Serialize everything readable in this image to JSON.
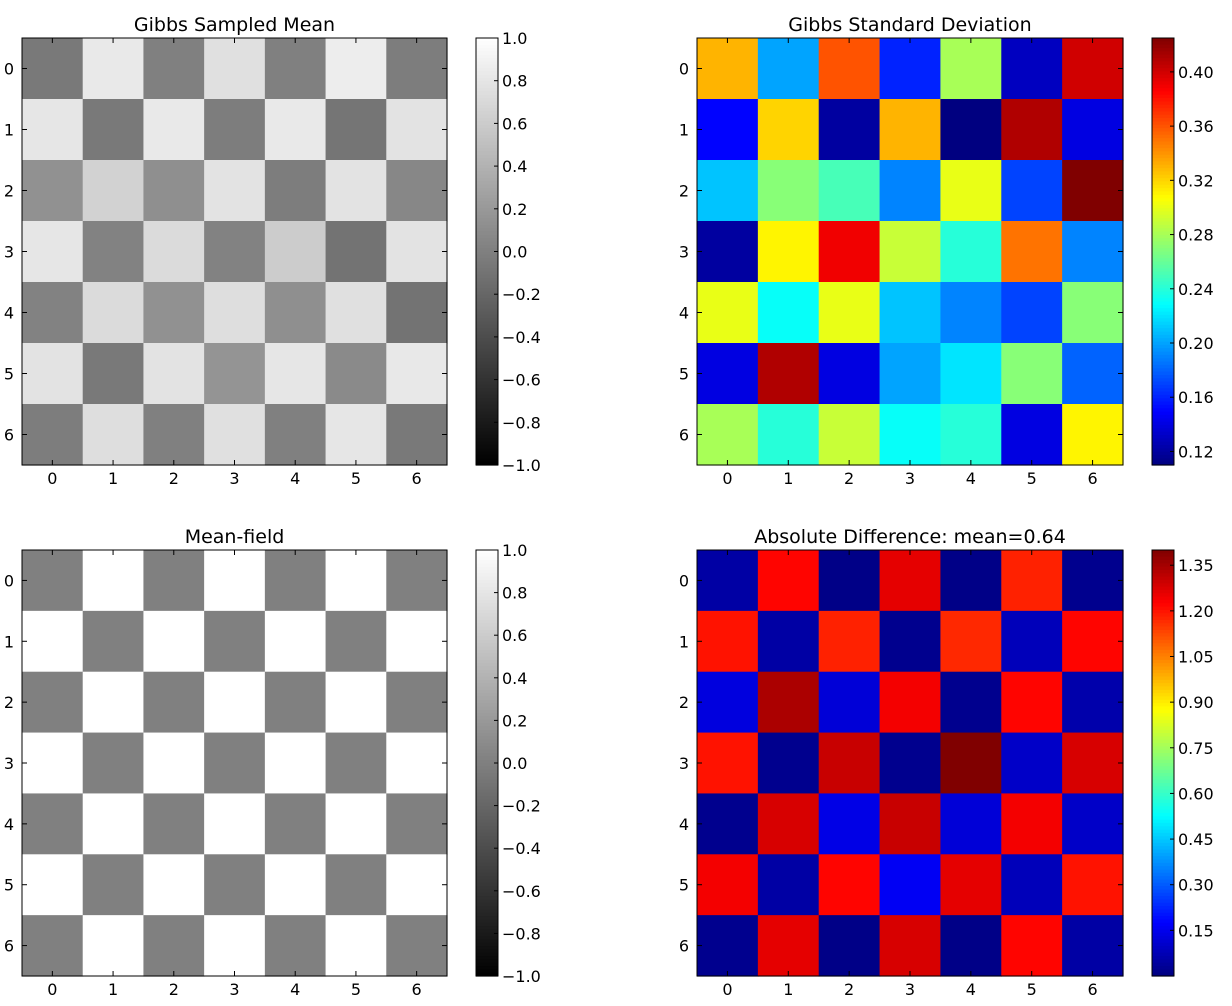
{
  "chart_data": [
    {
      "type": "heatmap",
      "title": "Gibbs Sampled Mean",
      "colormap": "gray",
      "vmin": -1.0,
      "vmax": 1.0,
      "x_ticks": [
        "0",
        "1",
        "2",
        "3",
        "4",
        "5",
        "6"
      ],
      "y_ticks": [
        "0",
        "1",
        "2",
        "3",
        "4",
        "5",
        "6"
      ],
      "colorbar_ticks": [
        "1.0",
        "0.8",
        "0.6",
        "0.4",
        "0.2",
        "0.0",
        "−0.2",
        "−0.4",
        "−0.6",
        "−0.8",
        "−1.0"
      ],
      "colorbar_tick_values": [
        1.0,
        0.8,
        0.6,
        0.4,
        0.2,
        0.0,
        -0.2,
        -0.4,
        -0.6,
        -0.8,
        -1.0
      ],
      "values": [
        [
          -0.05,
          0.83,
          0.0,
          0.76,
          0.0,
          0.86,
          -0.02
        ],
        [
          0.8,
          -0.05,
          0.83,
          -0.02,
          0.83,
          -0.08,
          0.78
        ],
        [
          0.14,
          0.65,
          0.12,
          0.78,
          -0.02,
          0.78,
          0.06
        ],
        [
          0.8,
          0.02,
          0.72,
          0.02,
          0.6,
          -0.1,
          0.78
        ],
        [
          0.02,
          0.72,
          0.14,
          0.74,
          0.12,
          0.76,
          -0.1
        ],
        [
          0.78,
          -0.05,
          0.78,
          0.16,
          0.8,
          0.08,
          0.82
        ],
        [
          -0.02,
          0.74,
          0.0,
          0.76,
          0.0,
          0.8,
          -0.05
        ]
      ]
    },
    {
      "type": "heatmap",
      "title": "Gibbs Standard Deviation",
      "colormap": "jet",
      "vmin": 0.11,
      "vmax": 0.425,
      "x_ticks": [
        "0",
        "1",
        "2",
        "3",
        "4",
        "5",
        "6"
      ],
      "y_ticks": [
        "0",
        "1",
        "2",
        "3",
        "4",
        "5",
        "6"
      ],
      "colorbar_ticks": [
        "0.40",
        "0.36",
        "0.32",
        "0.28",
        "0.24",
        "0.20",
        "0.16",
        "0.12"
      ],
      "colorbar_tick_values": [
        0.4,
        0.36,
        0.32,
        0.28,
        0.24,
        0.2,
        0.16,
        0.12
      ],
      "values": [
        [
          0.33,
          0.2,
          0.36,
          0.16,
          0.28,
          0.13,
          0.4
        ],
        [
          0.15,
          0.32,
          0.12,
          0.33,
          0.11,
          0.41,
          0.14
        ],
        [
          0.21,
          0.27,
          0.25,
          0.19,
          0.3,
          0.17,
          0.425
        ],
        [
          0.12,
          0.31,
          0.39,
          0.29,
          0.24,
          0.35,
          0.19
        ],
        [
          0.3,
          0.23,
          0.3,
          0.21,
          0.19,
          0.17,
          0.27
        ],
        [
          0.14,
          0.41,
          0.14,
          0.2,
          0.22,
          0.27,
          0.18
        ],
        [
          0.28,
          0.24,
          0.29,
          0.23,
          0.24,
          0.14,
          0.31
        ]
      ]
    },
    {
      "type": "heatmap",
      "title": "Mean-field",
      "colormap": "gray",
      "vmin": -1.0,
      "vmax": 1.0,
      "x_ticks": [
        "0",
        "1",
        "2",
        "3",
        "4",
        "5",
        "6"
      ],
      "y_ticks": [
        "0",
        "1",
        "2",
        "3",
        "4",
        "5",
        "6"
      ],
      "colorbar_ticks": [
        "1.0",
        "0.8",
        "0.6",
        "0.4",
        "0.2",
        "0.0",
        "−0.2",
        "−0.4",
        "−0.6",
        "−0.8",
        "−1.0"
      ],
      "colorbar_tick_values": [
        1.0,
        0.8,
        0.6,
        0.4,
        0.2,
        0.0,
        -0.2,
        -0.4,
        -0.6,
        -0.8,
        -1.0
      ],
      "values": [
        [
          0.0,
          1.0,
          0.0,
          1.0,
          0.0,
          1.0,
          0.0
        ],
        [
          1.0,
          0.0,
          1.0,
          0.0,
          1.0,
          0.0,
          1.0
        ],
        [
          0.0,
          1.0,
          0.0,
          1.0,
          0.0,
          1.0,
          0.0
        ],
        [
          1.0,
          0.0,
          1.0,
          0.0,
          1.0,
          0.0,
          1.0
        ],
        [
          0.0,
          1.0,
          0.0,
          1.0,
          0.0,
          1.0,
          0.0
        ],
        [
          1.0,
          0.0,
          1.0,
          0.0,
          1.0,
          0.0,
          1.0
        ],
        [
          0.0,
          1.0,
          0.0,
          1.0,
          0.0,
          1.0,
          0.0
        ]
      ]
    },
    {
      "type": "heatmap",
      "title": "Absolute Difference: mean=0.64",
      "colormap": "jet",
      "vmin": 0.0,
      "vmax": 1.4,
      "x_ticks": [
        "0",
        "1",
        "2",
        "3",
        "4",
        "5",
        "6"
      ],
      "y_ticks": [
        "0",
        "1",
        "2",
        "3",
        "4",
        "5",
        "6"
      ],
      "colorbar_ticks": [
        "1.35",
        "1.20",
        "1.05",
        "0.90",
        "0.75",
        "0.60",
        "0.45",
        "0.30",
        "0.15"
      ],
      "colorbar_tick_values": [
        1.35,
        1.2,
        1.05,
        0.9,
        0.75,
        0.6,
        0.45,
        0.3,
        0.15
      ],
      "values": [
        [
          0.05,
          1.22,
          0.01,
          1.26,
          0.01,
          1.18,
          0.02
        ],
        [
          1.2,
          0.05,
          1.18,
          0.02,
          1.17,
          0.08,
          1.22
        ],
        [
          0.13,
          1.34,
          0.12,
          1.24,
          0.02,
          1.22,
          0.06
        ],
        [
          1.2,
          0.02,
          1.3,
          0.02,
          1.4,
          0.1,
          1.28
        ],
        [
          0.02,
          1.28,
          0.14,
          1.3,
          0.12,
          1.24,
          0.1
        ],
        [
          1.24,
          0.05,
          1.22,
          0.16,
          1.26,
          0.08,
          1.2
        ],
        [
          0.02,
          1.26,
          0.01,
          1.28,
          0.01,
          1.22,
          0.05
        ]
      ]
    }
  ]
}
